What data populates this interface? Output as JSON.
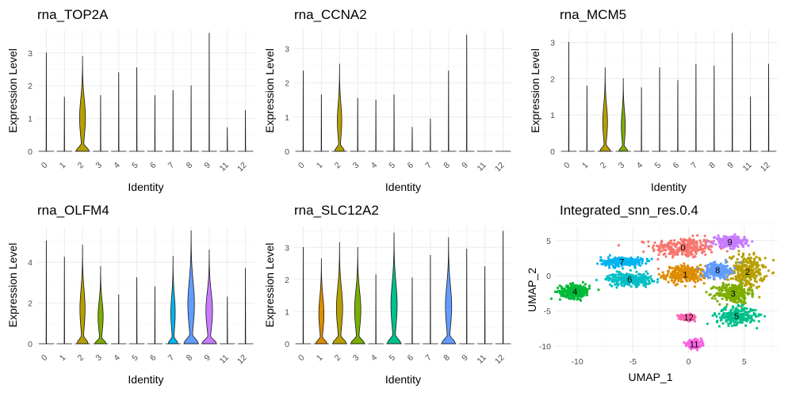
{
  "colors": {
    "0": "#F8766D",
    "1": "#DE8C00",
    "2": "#B79F00",
    "3": "#7CAE00",
    "4": "#00BA38",
    "5": "#00C08B",
    "6": "#00BFC4",
    "7": "#00B4F0",
    "8": "#619CFF",
    "9": "#C77CFF",
    "11": "#F564E3",
    "12": "#FF64B0"
  },
  "chart_data": [
    {
      "type": "violin",
      "title": "rna_TOP2A",
      "xlabel": "Identity",
      "ylabel": "Expression Level",
      "categories": [
        "0",
        "1",
        "2",
        "3",
        "4",
        "5",
        "6",
        "7",
        "8",
        "9",
        "11",
        "12"
      ],
      "max_values": [
        3.0,
        1.65,
        2.9,
        1.7,
        2.4,
        2.55,
        1.7,
        1.85,
        2.0,
        3.6,
        0.72,
        1.25
      ],
      "body_widths": [
        0.03,
        0.03,
        0.8,
        0.03,
        0.03,
        0.03,
        0.03,
        0.03,
        0.03,
        0.03,
        0.03,
        0.03
      ],
      "ylim": [
        0,
        3.6
      ],
      "yticks": [
        0,
        1,
        2,
        3
      ]
    },
    {
      "type": "violin",
      "title": "rna_CCNA2",
      "xlabel": "Identity",
      "ylabel": "Expression Level",
      "categories": [
        "0",
        "1",
        "2",
        "3",
        "4",
        "5",
        "6",
        "7",
        "8",
        "9",
        "11",
        "12"
      ],
      "max_values": [
        2.35,
        1.65,
        2.55,
        1.55,
        1.5,
        1.65,
        0.7,
        0.95,
        2.35,
        3.4,
        0.0,
        0.0
      ],
      "body_widths": [
        0.03,
        0.03,
        0.6,
        0.03,
        0.03,
        0.03,
        0.03,
        0.03,
        0.03,
        0.03,
        0.03,
        0.03
      ],
      "ylim": [
        0,
        3.45
      ],
      "yticks": [
        0,
        1,
        2,
        3
      ]
    },
    {
      "type": "violin",
      "title": "rna_MCM5",
      "xlabel": "Identity",
      "ylabel": "Expression Level",
      "categories": [
        "0",
        "1",
        "2",
        "3",
        "4",
        "5",
        "6",
        "7",
        "8",
        "9",
        "11",
        "12"
      ],
      "max_values": [
        3.0,
        1.8,
        2.3,
        2.0,
        1.75,
        2.3,
        1.95,
        2.4,
        2.35,
        3.25,
        1.5,
        2.4
      ],
      "body_widths": [
        0.03,
        0.03,
        0.65,
        0.55,
        0.03,
        0.03,
        0.03,
        0.03,
        0.03,
        0.03,
        0.03,
        0.03
      ],
      "ylim": [
        0,
        3.25
      ],
      "yticks": [
        0,
        1,
        2,
        3
      ]
    },
    {
      "type": "violin",
      "title": "rna_OLFM4",
      "xlabel": "Identity",
      "ylabel": "Expression Level",
      "categories": [
        "0",
        "1",
        "2",
        "3",
        "4",
        "5",
        "6",
        "7",
        "8",
        "9",
        "11",
        "12"
      ],
      "max_values": [
        5.05,
        4.25,
        4.85,
        3.8,
        2.4,
        3.25,
        2.8,
        4.3,
        5.55,
        4.6,
        2.3,
        3.7
      ],
      "body_widths": [
        0.03,
        0.03,
        0.7,
        0.7,
        0.03,
        0.03,
        0.03,
        0.6,
        0.9,
        0.9,
        0.03,
        0.03
      ],
      "ylim": [
        0,
        5.6
      ],
      "yticks": [
        0,
        2,
        4
      ]
    },
    {
      "type": "violin",
      "title": "rna_SLC12A2",
      "xlabel": "Identity",
      "ylabel": "Expression Level",
      "categories": [
        "0",
        "1",
        "2",
        "3",
        "4",
        "5",
        "6",
        "7",
        "8",
        "9",
        "11",
        "12"
      ],
      "max_values": [
        3.0,
        2.65,
        3.15,
        3.0,
        2.15,
        3.45,
        2.05,
        2.75,
        3.3,
        2.95,
        2.4,
        3.5
      ],
      "body_widths": [
        0.03,
        0.7,
        0.85,
        0.85,
        0.03,
        0.85,
        0.03,
        0.03,
        0.85,
        0.03,
        0.03,
        0.03
      ],
      "ylim": [
        0,
        3.55
      ],
      "yticks": [
        0,
        1,
        2,
        3
      ]
    },
    {
      "type": "scatter",
      "title": "Integrated_snn_res.0.4",
      "xlabel": "UMAP_1",
      "ylabel": "UMAP_2",
      "xlim": [
        -12,
        8
      ],
      "ylim": [
        -11,
        7
      ],
      "xticks": [
        -10,
        -5,
        0,
        5
      ],
      "yticks": [
        5,
        0,
        -5,
        -10
      ],
      "clusters": [
        {
          "label": "0",
          "center": [
            -0.5,
            4.0
          ],
          "spread": [
            2.6,
            1.3
          ]
        },
        {
          "label": "1",
          "center": [
            -0.3,
            0.2
          ],
          "spread": [
            1.7,
            1.1
          ]
        },
        {
          "label": "2",
          "center": [
            5.3,
            0.6
          ],
          "spread": [
            1.4,
            2.2
          ]
        },
        {
          "label": "3",
          "center": [
            4.0,
            -2.5
          ],
          "spread": [
            1.4,
            1.3
          ]
        },
        {
          "label": "4",
          "center": [
            -10.2,
            -2.2
          ],
          "spread": [
            1.2,
            0.9
          ]
        },
        {
          "label": "5",
          "center": [
            4.3,
            -5.7
          ],
          "spread": [
            1.6,
            1.1
          ]
        },
        {
          "label": "6",
          "center": [
            -5.3,
            -0.5
          ],
          "spread": [
            1.8,
            0.8
          ]
        },
        {
          "label": "7",
          "center": [
            -6.0,
            2.0
          ],
          "spread": [
            1.7,
            0.6
          ]
        },
        {
          "label": "8",
          "center": [
            2.6,
            0.8
          ],
          "spread": [
            1.0,
            0.9
          ]
        },
        {
          "label": "9",
          "center": [
            3.7,
            4.8
          ],
          "spread": [
            1.2,
            0.7
          ]
        },
        {
          "label": "11",
          "center": [
            0.5,
            -9.7
          ],
          "spread": [
            0.6,
            0.5
          ]
        },
        {
          "label": "12",
          "center": [
            0.0,
            -5.9
          ],
          "spread": [
            0.6,
            0.3
          ]
        }
      ]
    }
  ]
}
